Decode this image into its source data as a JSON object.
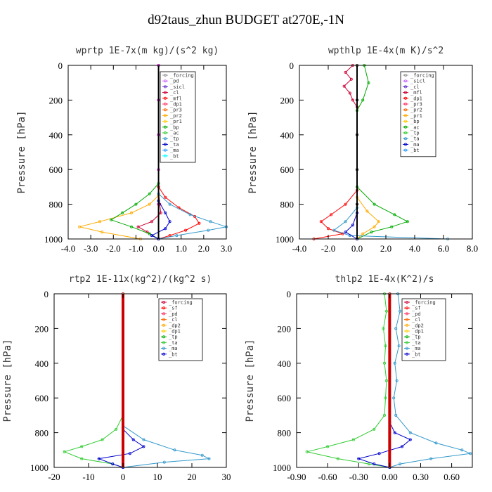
{
  "title": "d92taus_zhun  BUDGET at270E,-1N",
  "chart_data": [
    {
      "type": "line",
      "panel_title": "wprtp  1E-7x(m kg)/(s^2 kg)",
      "ylabel": "Pressure [hPa]",
      "xlim": [
        -4.0,
        3.0
      ],
      "ylim": [
        1000,
        0
      ],
      "xticks": [
        "-4.0",
        "-3.0",
        "-2.0",
        "-1.0",
        "0.0",
        "1.0",
        "2.0",
        "3.0"
      ],
      "xtick_values": [
        -4,
        -3,
        -2,
        -1,
        0,
        1,
        2,
        3
      ],
      "yticks": [
        "0",
        "200",
        "400",
        "600",
        "800",
        "1000"
      ],
      "ytick_values": [
        0,
        200,
        400,
        600,
        800,
        1000
      ],
      "legend": [
        "_forcing",
        "_pd",
        "_sicl",
        "_cl",
        "_mfl",
        "_dp1",
        "_pr3",
        "_pr2",
        "_pr1",
        "_bp",
        "_ac",
        "_tp",
        "_ta",
        "_ma",
        "_bt"
      ],
      "series": [
        {
          "color": "#000000",
          "p": [
            0,
            200,
            400,
            600,
            800,
            1000
          ],
          "x": [
            0,
            0,
            0,
            0,
            0,
            0
          ]
        },
        {
          "color": "#ff00ff",
          "p": [
            0,
            200,
            400,
            600,
            800,
            1000
          ],
          "x": [
            0,
            0,
            0,
            0,
            0,
            0
          ]
        },
        {
          "color": "#cc0033",
          "p": [
            700,
            800,
            850,
            900,
            930,
            960,
            1000
          ],
          "x": [
            0,
            0.05,
            0.1,
            -0.3,
            -0.9,
            -0.5,
            0
          ]
        },
        {
          "color": "#ff0000",
          "p": [
            700,
            760,
            820,
            870,
            910,
            950,
            980,
            1000
          ],
          "x": [
            0,
            0.3,
            0.9,
            1.6,
            1.8,
            1.2,
            0.5,
            0
          ]
        },
        {
          "color": "#ffaa00",
          "p": [
            750,
            800,
            850,
            900,
            930,
            960,
            1000
          ],
          "x": [
            0,
            -0.4,
            -1.2,
            -2.6,
            -3.5,
            -2.5,
            -0.8
          ]
        },
        {
          "color": "#00aa00",
          "p": [
            680,
            740,
            800,
            850,
            890,
            930,
            970,
            1000
          ],
          "x": [
            0,
            -0.4,
            -1.0,
            -1.6,
            -2.1,
            -1.2,
            -0.4,
            0
          ]
        },
        {
          "color": "#3399cc",
          "p": [
            740,
            800,
            860,
            900,
            930,
            950,
            980,
            1000
          ],
          "x": [
            0,
            0.5,
            1.4,
            2.3,
            3.0,
            2.2,
            0.8,
            0
          ]
        },
        {
          "color": "#0000cc",
          "p": [
            780,
            850,
            900,
            940,
            980,
            1000
          ],
          "x": [
            0,
            0.3,
            0.5,
            0.3,
            -0.3,
            0
          ]
        }
      ]
    },
    {
      "type": "line",
      "panel_title": "wpthlp  1E-4x(m K)/s^2",
      "ylabel": "Pressure [hPa]",
      "xlim": [
        -4.0,
        8.0
      ],
      "ylim": [
        1000,
        0
      ],
      "xticks": [
        "-4.0",
        "-2.0",
        "0.0",
        "2.0",
        "4.0",
        "6.0",
        "8.0"
      ],
      "xtick_values": [
        -4,
        -2,
        0,
        2,
        4,
        6,
        8
      ],
      "yticks": [
        "0",
        "200",
        "400",
        "600",
        "800",
        "1000"
      ],
      "ytick_values": [
        0,
        200,
        400,
        600,
        800,
        1000
      ],
      "legend": [
        "_forcing",
        "_sicl",
        "_cl",
        "_mfl",
        "_dp1",
        "_pr3",
        "_pr2",
        "_pr1",
        "_bp",
        "_ac",
        "_tp",
        "_ta",
        "_ma",
        "_bt"
      ],
      "series": [
        {
          "color": "#000000",
          "p": [
            0,
            200,
            400,
            600,
            800,
            1000
          ],
          "x": [
            0,
            0,
            0,
            0,
            0,
            0
          ]
        },
        {
          "color": "#cc0033",
          "p": [
            0,
            40,
            80,
            120,
            160,
            200,
            240
          ],
          "x": [
            -0.3,
            -0.8,
            -0.4,
            -0.9,
            -0.5,
            -0.3,
            0
          ]
        },
        {
          "color": "#ff0000",
          "p": [
            720,
            800,
            860,
            900,
            940,
            970,
            1000
          ],
          "x": [
            0,
            -0.8,
            -1.8,
            -2.5,
            -2.0,
            -1.0,
            -3.0
          ]
        },
        {
          "color": "#00aa00",
          "p": [
            0,
            100,
            200,
            260,
            700,
            800,
            860,
            900,
            930,
            960,
            1000
          ],
          "x": [
            0.5,
            0.8,
            0.4,
            0,
            0,
            1.2,
            2.6,
            3.5,
            2.4,
            1.0,
            0
          ]
        },
        {
          "color": "#ffaa00",
          "p": [
            760,
            840,
            900,
            930,
            970,
            1000
          ],
          "x": [
            0,
            0.7,
            1.5,
            1.2,
            0.4,
            0
          ]
        },
        {
          "color": "#3399cc",
          "p": [
            820,
            900,
            950,
            980,
            1000
          ],
          "x": [
            0,
            -0.8,
            -1.6,
            -0.5,
            6.3
          ]
        },
        {
          "color": "#0000cc",
          "p": [
            850,
            920,
            960,
            1000
          ],
          "x": [
            0,
            -0.3,
            -0.8,
            0
          ]
        }
      ]
    },
    {
      "type": "line",
      "panel_title": "rtp2  1E-11x(kg^2)/(kg^2 s)",
      "ylabel": "Pressure [hPa]",
      "xlim": [
        -20,
        30
      ],
      "ylim": [
        1000,
        0
      ],
      "xticks": [
        "-20",
        "-10",
        "0",
        "10",
        "20",
        "30"
      ],
      "xtick_values": [
        -20,
        -10,
        0,
        10,
        20,
        30
      ],
      "yticks": [
        "0",
        "200",
        "400",
        "600",
        "800",
        "1000"
      ],
      "ytick_values": [
        0,
        200,
        400,
        600,
        800,
        1000
      ],
      "legend": [
        "_forcing",
        "_sf",
        "_pd",
        "_cl",
        "_dp2",
        "_dp1",
        "_tp",
        "_ta",
        "_ma",
        "_bt"
      ],
      "series": [
        {
          "color": "#cc0000",
          "p": [
            0,
            200,
            400,
            600,
            800,
            1000
          ],
          "x": [
            0,
            0,
            0,
            0,
            0,
            0
          ]
        },
        {
          "color": "#33cc33",
          "p": [
            700,
            780,
            840,
            880,
            910,
            950,
            980,
            1000
          ],
          "x": [
            0,
            -2,
            -6,
            -12,
            -17,
            -12,
            -3,
            0
          ]
        },
        {
          "color": "#3399cc",
          "p": [
            760,
            840,
            900,
            930,
            950,
            970,
            1000
          ],
          "x": [
            0,
            6,
            15,
            23,
            25,
            12,
            0
          ]
        },
        {
          "color": "#0000cc",
          "p": [
            780,
            840,
            880,
            920,
            950,
            980,
            1000
          ],
          "x": [
            0,
            3,
            6,
            2,
            -7,
            -3,
            0
          ]
        }
      ]
    },
    {
      "type": "line",
      "panel_title": "thlp2  1E-4x(K^2)/s",
      "ylabel": "Pressure [hPa]",
      "xlim": [
        -0.9,
        0.8
      ],
      "ylim": [
        1000,
        0
      ],
      "xticks": [
        "-0.90",
        "-0.60",
        "-0.30",
        "0.00",
        "0.30",
        "0.60"
      ],
      "xtick_values": [
        -0.9,
        -0.6,
        -0.3,
        0,
        0.3,
        0.6
      ],
      "yticks": [
        "0",
        "200",
        "400",
        "600",
        "800",
        "1000"
      ],
      "ytick_values": [
        0,
        200,
        400,
        600,
        800,
        1000
      ],
      "legend": [
        "_forcing",
        "_sf",
        "_pd",
        "_cl",
        "_dp2",
        "_dp1",
        "_tp",
        "_ta",
        "_ma",
        "_bt"
      ],
      "series": [
        {
          "color": "#cc0000",
          "p": [
            0,
            200,
            400,
            600,
            800,
            1000
          ],
          "x": [
            0,
            0,
            0,
            0,
            0,
            0
          ]
        },
        {
          "color": "#33cc33",
          "p": [
            0,
            100,
            200,
            300,
            400,
            500,
            600,
            700,
            780,
            840,
            880,
            910,
            950,
            980,
            1000
          ],
          "x": [
            -0.05,
            -0.03,
            -0.06,
            -0.04,
            -0.05,
            -0.03,
            -0.04,
            -0.05,
            -0.15,
            -0.35,
            -0.6,
            -0.8,
            -0.5,
            -0.2,
            0
          ]
        },
        {
          "color": "#3399cc",
          "p": [
            0,
            100,
            200,
            300,
            400,
            500,
            600,
            700,
            800,
            860,
            900,
            920,
            950,
            980,
            1000
          ],
          "x": [
            0.08,
            0.1,
            0.06,
            0.09,
            0.05,
            0.07,
            0.04,
            0.06,
            0.2,
            0.45,
            0.7,
            0.78,
            0.4,
            0.1,
            0
          ]
        },
        {
          "color": "#0000cc",
          "p": [
            740,
            800,
            840,
            880,
            920,
            950,
            980,
            1000
          ],
          "x": [
            0,
            0.05,
            0.2,
            0.12,
            -0.1,
            -0.3,
            -0.15,
            0
          ]
        }
      ]
    }
  ]
}
